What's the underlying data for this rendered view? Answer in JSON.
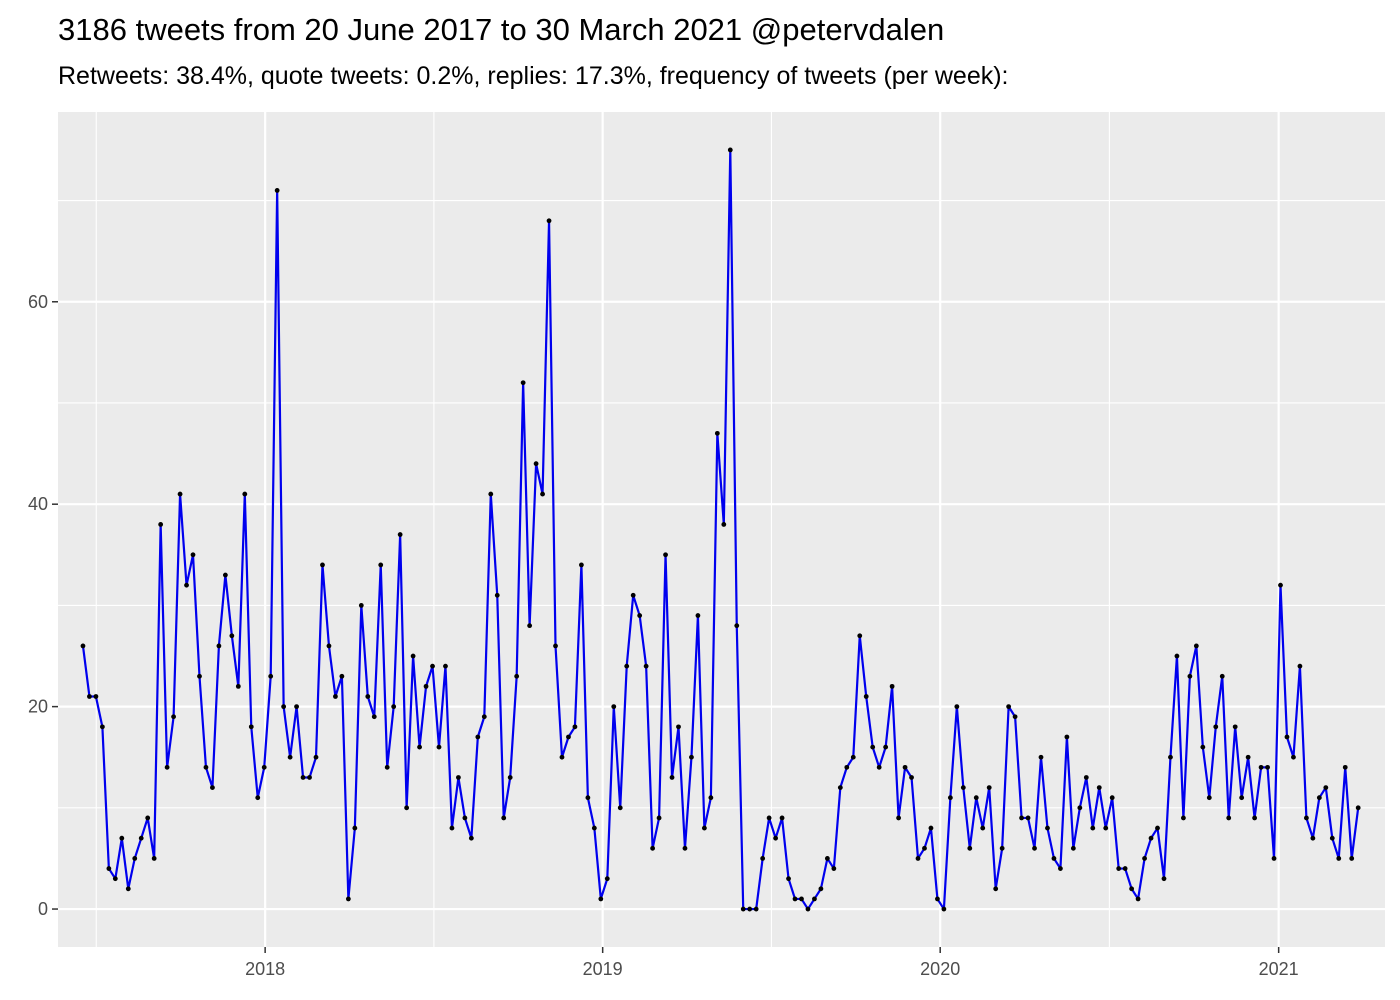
{
  "chart_data": {
    "type": "line",
    "title": "3186 tweets from 20 June 2017 to 30 March 2021 @petervdalen",
    "subtitle": "Retweets: 38.4%, quote tweets: 0.2%, replies: 17.3%, frequency of tweets (per week):",
    "xlabel": "",
    "ylabel": "",
    "x_start": "2017-06-18",
    "x_step_days": 7,
    "x_range": [
      "2017-05-22",
      "2021-04-26"
    ],
    "ylim": [
      -3.75,
      78.75
    ],
    "y_ticks": [
      0,
      20,
      40,
      60
    ],
    "y_minor_ticks": [
      10,
      30,
      50,
      70
    ],
    "x_ticks": [
      {
        "date": "2018-01-01",
        "label": "2018"
      },
      {
        "date": "2019-01-01",
        "label": "2019"
      },
      {
        "date": "2020-01-01",
        "label": "2020"
      },
      {
        "date": "2021-01-01",
        "label": "2021"
      }
    ],
    "grid": true,
    "colors": {
      "line": "#0000ee",
      "point": "#000000",
      "panel": "#ebebeb",
      "grid": "#ffffff",
      "tick_text": "#4d4d4d"
    },
    "values": [
      26,
      21,
      21,
      18,
      4,
      3,
      7,
      2,
      5,
      7,
      9,
      5,
      38,
      14,
      19,
      41,
      32,
      35,
      23,
      14,
      12,
      26,
      33,
      27,
      22,
      41,
      18,
      11,
      14,
      23,
      71,
      20,
      15,
      20,
      13,
      13,
      15,
      34,
      26,
      21,
      23,
      1,
      8,
      30,
      21,
      19,
      34,
      14,
      20,
      37,
      10,
      25,
      16,
      22,
      24,
      16,
      24,
      8,
      13,
      9,
      7,
      17,
      19,
      41,
      31,
      9,
      13,
      23,
      52,
      28,
      44,
      41,
      68,
      26,
      15,
      17,
      18,
      34,
      11,
      8,
      1,
      3,
      20,
      10,
      24,
      31,
      29,
      24,
      6,
      9,
      35,
      13,
      18,
      6,
      15,
      29,
      8,
      11,
      47,
      38,
      75,
      28,
      0,
      0,
      0,
      5,
      9,
      7,
      9,
      3,
      1,
      1,
      0,
      1,
      2,
      5,
      4,
      12,
      14,
      15,
      27,
      21,
      16,
      14,
      16,
      22,
      9,
      14,
      13,
      5,
      6,
      8,
      1,
      0,
      11,
      20,
      12,
      6,
      11,
      8,
      12,
      2,
      6,
      20,
      19,
      9,
      9,
      6,
      15,
      8,
      5,
      4,
      17,
      6,
      10,
      13,
      8,
      12,
      8,
      11,
      4,
      4,
      2,
      1,
      5,
      7,
      8,
      3,
      15,
      25,
      9,
      23,
      26,
      16,
      11,
      18,
      23,
      9,
      18,
      11,
      15,
      9,
      14,
      14,
      5,
      32,
      17,
      15,
      24,
      9,
      7,
      11,
      12,
      7,
      5,
      14,
      5,
      10
    ]
  }
}
